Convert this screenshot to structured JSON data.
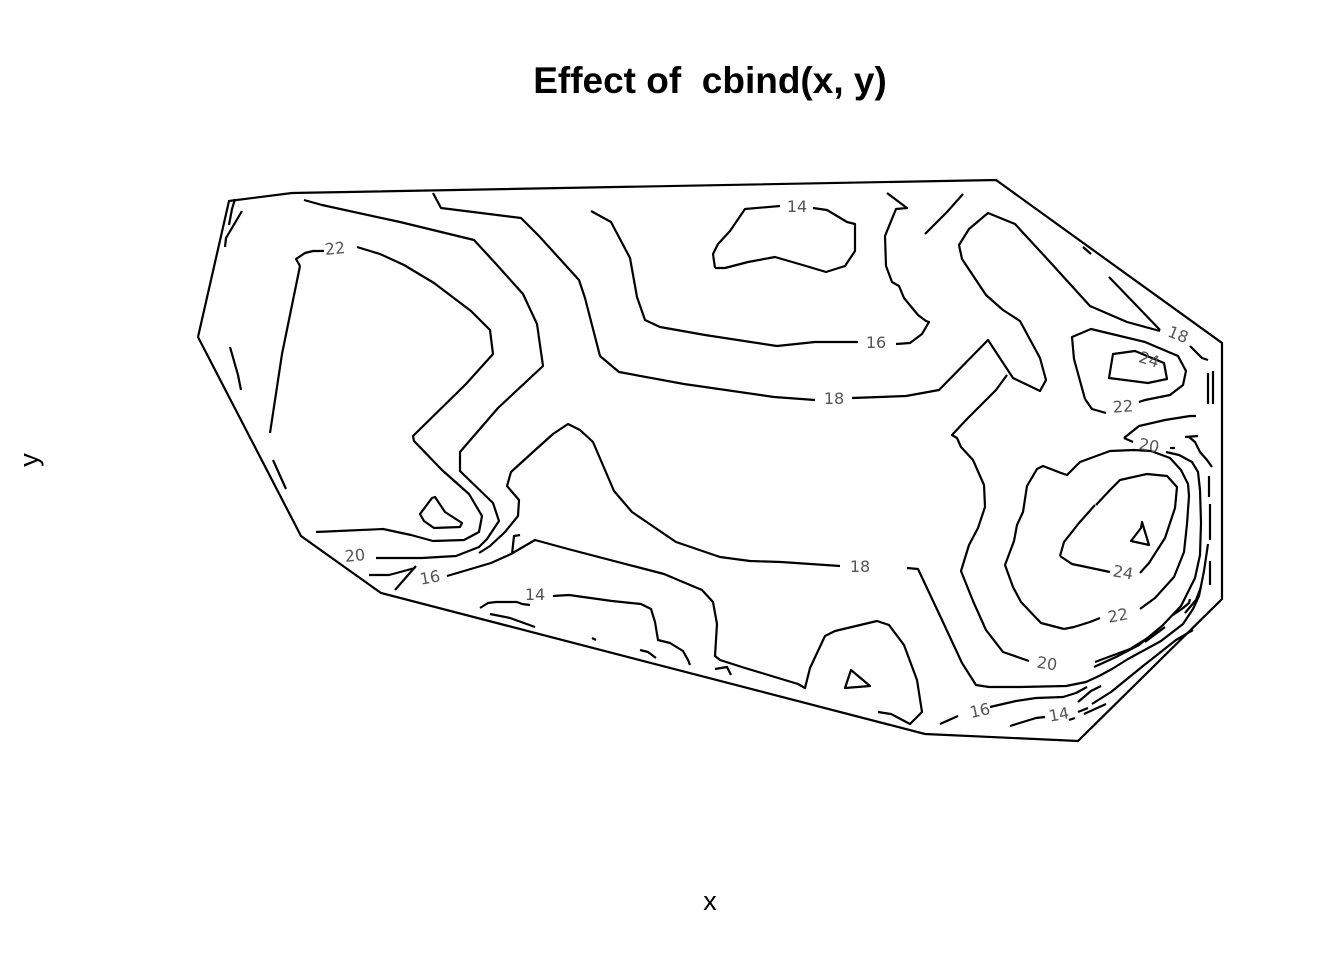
{
  "chart_data": {
    "type": "contour",
    "title": "Effect of  cbind(x, y)",
    "xlabel": "x",
    "ylabel": "y",
    "levels": [
      14,
      16,
      18,
      20,
      22,
      24
    ],
    "contour_labels": [
      "14",
      "14",
      "14",
      "16",
      "16",
      "16",
      "18",
      "18",
      "18",
      "20",
      "20",
      "20",
      "22",
      "22",
      "22",
      "24",
      "24"
    ],
    "axes_shown": false,
    "grid": false,
    "legend": "none",
    "line_color": "#000000"
  }
}
